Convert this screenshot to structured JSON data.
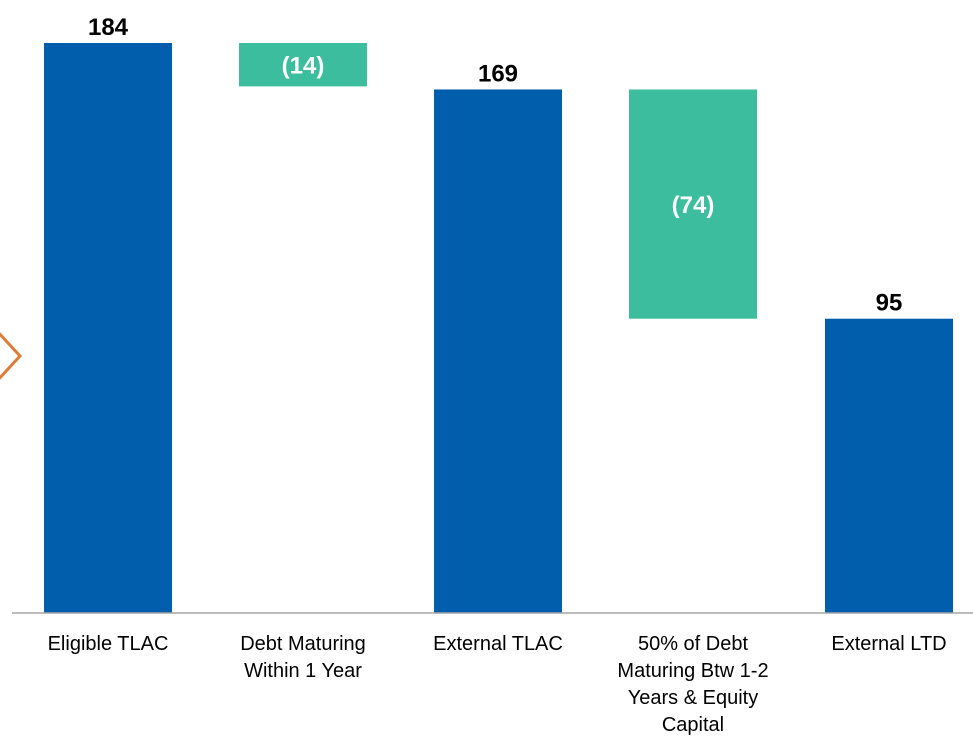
{
  "chart_data": {
    "type": "bar",
    "subtype": "waterfall",
    "title": "",
    "categories": [
      "Eligible TLAC",
      "Debt Maturing Within 1 Year",
      "External TLAC",
      "50% of Debt Maturing Btw 1-2 Years & Equity Capital",
      "External LTD"
    ],
    "category_lines": [
      [
        "Eligible TLAC"
      ],
      [
        "Debt Maturing",
        "Within 1 Year"
      ],
      [
        "External TLAC"
      ],
      [
        "50% of Debt",
        "Maturing Btw 1-2",
        "Years & Equity",
        "Capital"
      ],
      [
        "External LTD"
      ]
    ],
    "values": [
      184,
      -14,
      169,
      -74,
      95
    ],
    "bar_kind": [
      "total",
      "delta",
      "total",
      "delta",
      "total"
    ],
    "data_labels": [
      "184",
      "(14)",
      "169",
      "(74)",
      "95"
    ],
    "ylim": [
      0,
      184
    ],
    "grid": false,
    "legend": "none",
    "colors": {
      "total": "#005EAC",
      "delta": "#3CBD9E",
      "axis": "#A6A6A6",
      "accent": "#E07B39"
    }
  }
}
